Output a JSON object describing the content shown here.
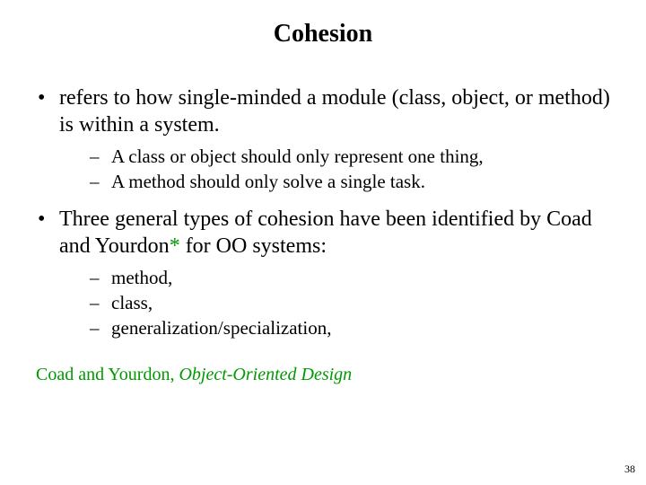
{
  "title": "Cohesion",
  "bullets": {
    "b1": "refers to how single-minded a module (class, object, or method) is within a system.",
    "b1_subs": {
      "s1": "A class or object should only represent one thing,",
      "s2": "A method should only solve a single task."
    },
    "b2_pre": "Three general types of cohesion have been identified by Coad and Yourdon",
    "b2_ast": "*",
    "b2_post": " for OO systems:",
    "b2_subs": {
      "s1": "method,",
      "s2": "class,",
      "s3": "generalization/specialization,"
    }
  },
  "footnote": {
    "prefix": "Coad and Yourdon, ",
    "italic": "Object-Oriented Design"
  },
  "page_number": "38",
  "colors": {
    "accent_green": "#009900",
    "text": "#000000",
    "background": "#ffffff"
  },
  "typography": {
    "title_fontsize_pt": 21,
    "body_fontsize_pt": 18,
    "sub_fontsize_pt": 16,
    "footnote_fontsize_pt": 15,
    "pagenum_fontsize_pt": 9,
    "font_family": "Times New Roman"
  }
}
